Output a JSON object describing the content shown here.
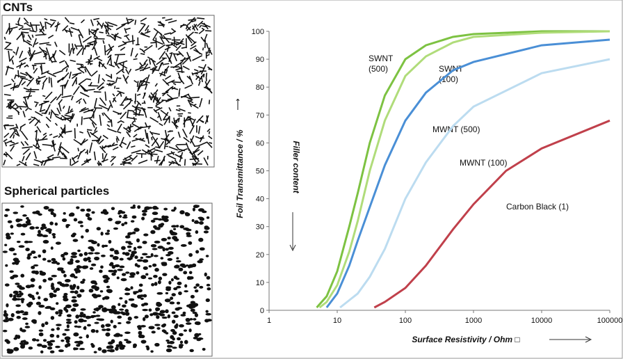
{
  "panels": [
    {
      "label": "CNTs"
    },
    {
      "label": "Spherical particles"
    }
  ],
  "chart_data": {
    "type": "line",
    "xlabel": "Surface Resistivity / Ohm □",
    "ylabel": "Foil Transmittance / %",
    "annotation": "Filler content",
    "xlog": true,
    "xlim": [
      1,
      100000
    ],
    "xticks": [
      1,
      10,
      100,
      1000,
      10000,
      100000
    ],
    "ylim": [
      0,
      100
    ],
    "yticks": [
      0,
      10,
      20,
      30,
      40,
      50,
      60,
      70,
      80,
      90,
      100
    ],
    "series": [
      {
        "name": "SWNT\n(500)",
        "color": "#7dc242",
        "x": [
          5,
          7,
          10,
          15,
          20,
          30,
          50,
          100,
          200,
          500,
          1000,
          10000,
          100000
        ],
        "values": [
          1,
          5,
          14,
          30,
          42,
          60,
          77,
          90,
          95,
          98,
          99,
          100,
          100
        ]
      },
      {
        "name": "SWNT\n(100)",
        "color": "#b0dc7a",
        "x": [
          5.5,
          7,
          10,
          15,
          20,
          30,
          50,
          100,
          200,
          500,
          1000,
          10000,
          100000
        ],
        "values": [
          1,
          3,
          9,
          21,
          32,
          50,
          68,
          84,
          91,
          96,
          98,
          99.5,
          100
        ]
      },
      {
        "name": "MWNT (500)",
        "color": "#4a8fd6",
        "x": [
          7,
          10,
          15,
          20,
          30,
          50,
          100,
          200,
          500,
          1000,
          10000,
          100000
        ],
        "values": [
          1,
          6,
          16,
          25,
          37,
          52,
          68,
          78,
          86,
          89,
          95,
          97
        ]
      },
      {
        "name": "MWNT (100)",
        "color": "#bcdcf0",
        "x": [
          11,
          20,
          30,
          50,
          100,
          200,
          500,
          1000,
          10000,
          100000
        ],
        "values": [
          1,
          6,
          12,
          22,
          40,
          53,
          66,
          73,
          85,
          90
        ]
      },
      {
        "name": "Carbon Black (1)",
        "color": "#c0404b",
        "x": [
          35,
          50,
          100,
          200,
          500,
          1000,
          3000,
          10000,
          100000
        ],
        "values": [
          1,
          3,
          8,
          16,
          29,
          38,
          50,
          58,
          68
        ]
      }
    ]
  }
}
